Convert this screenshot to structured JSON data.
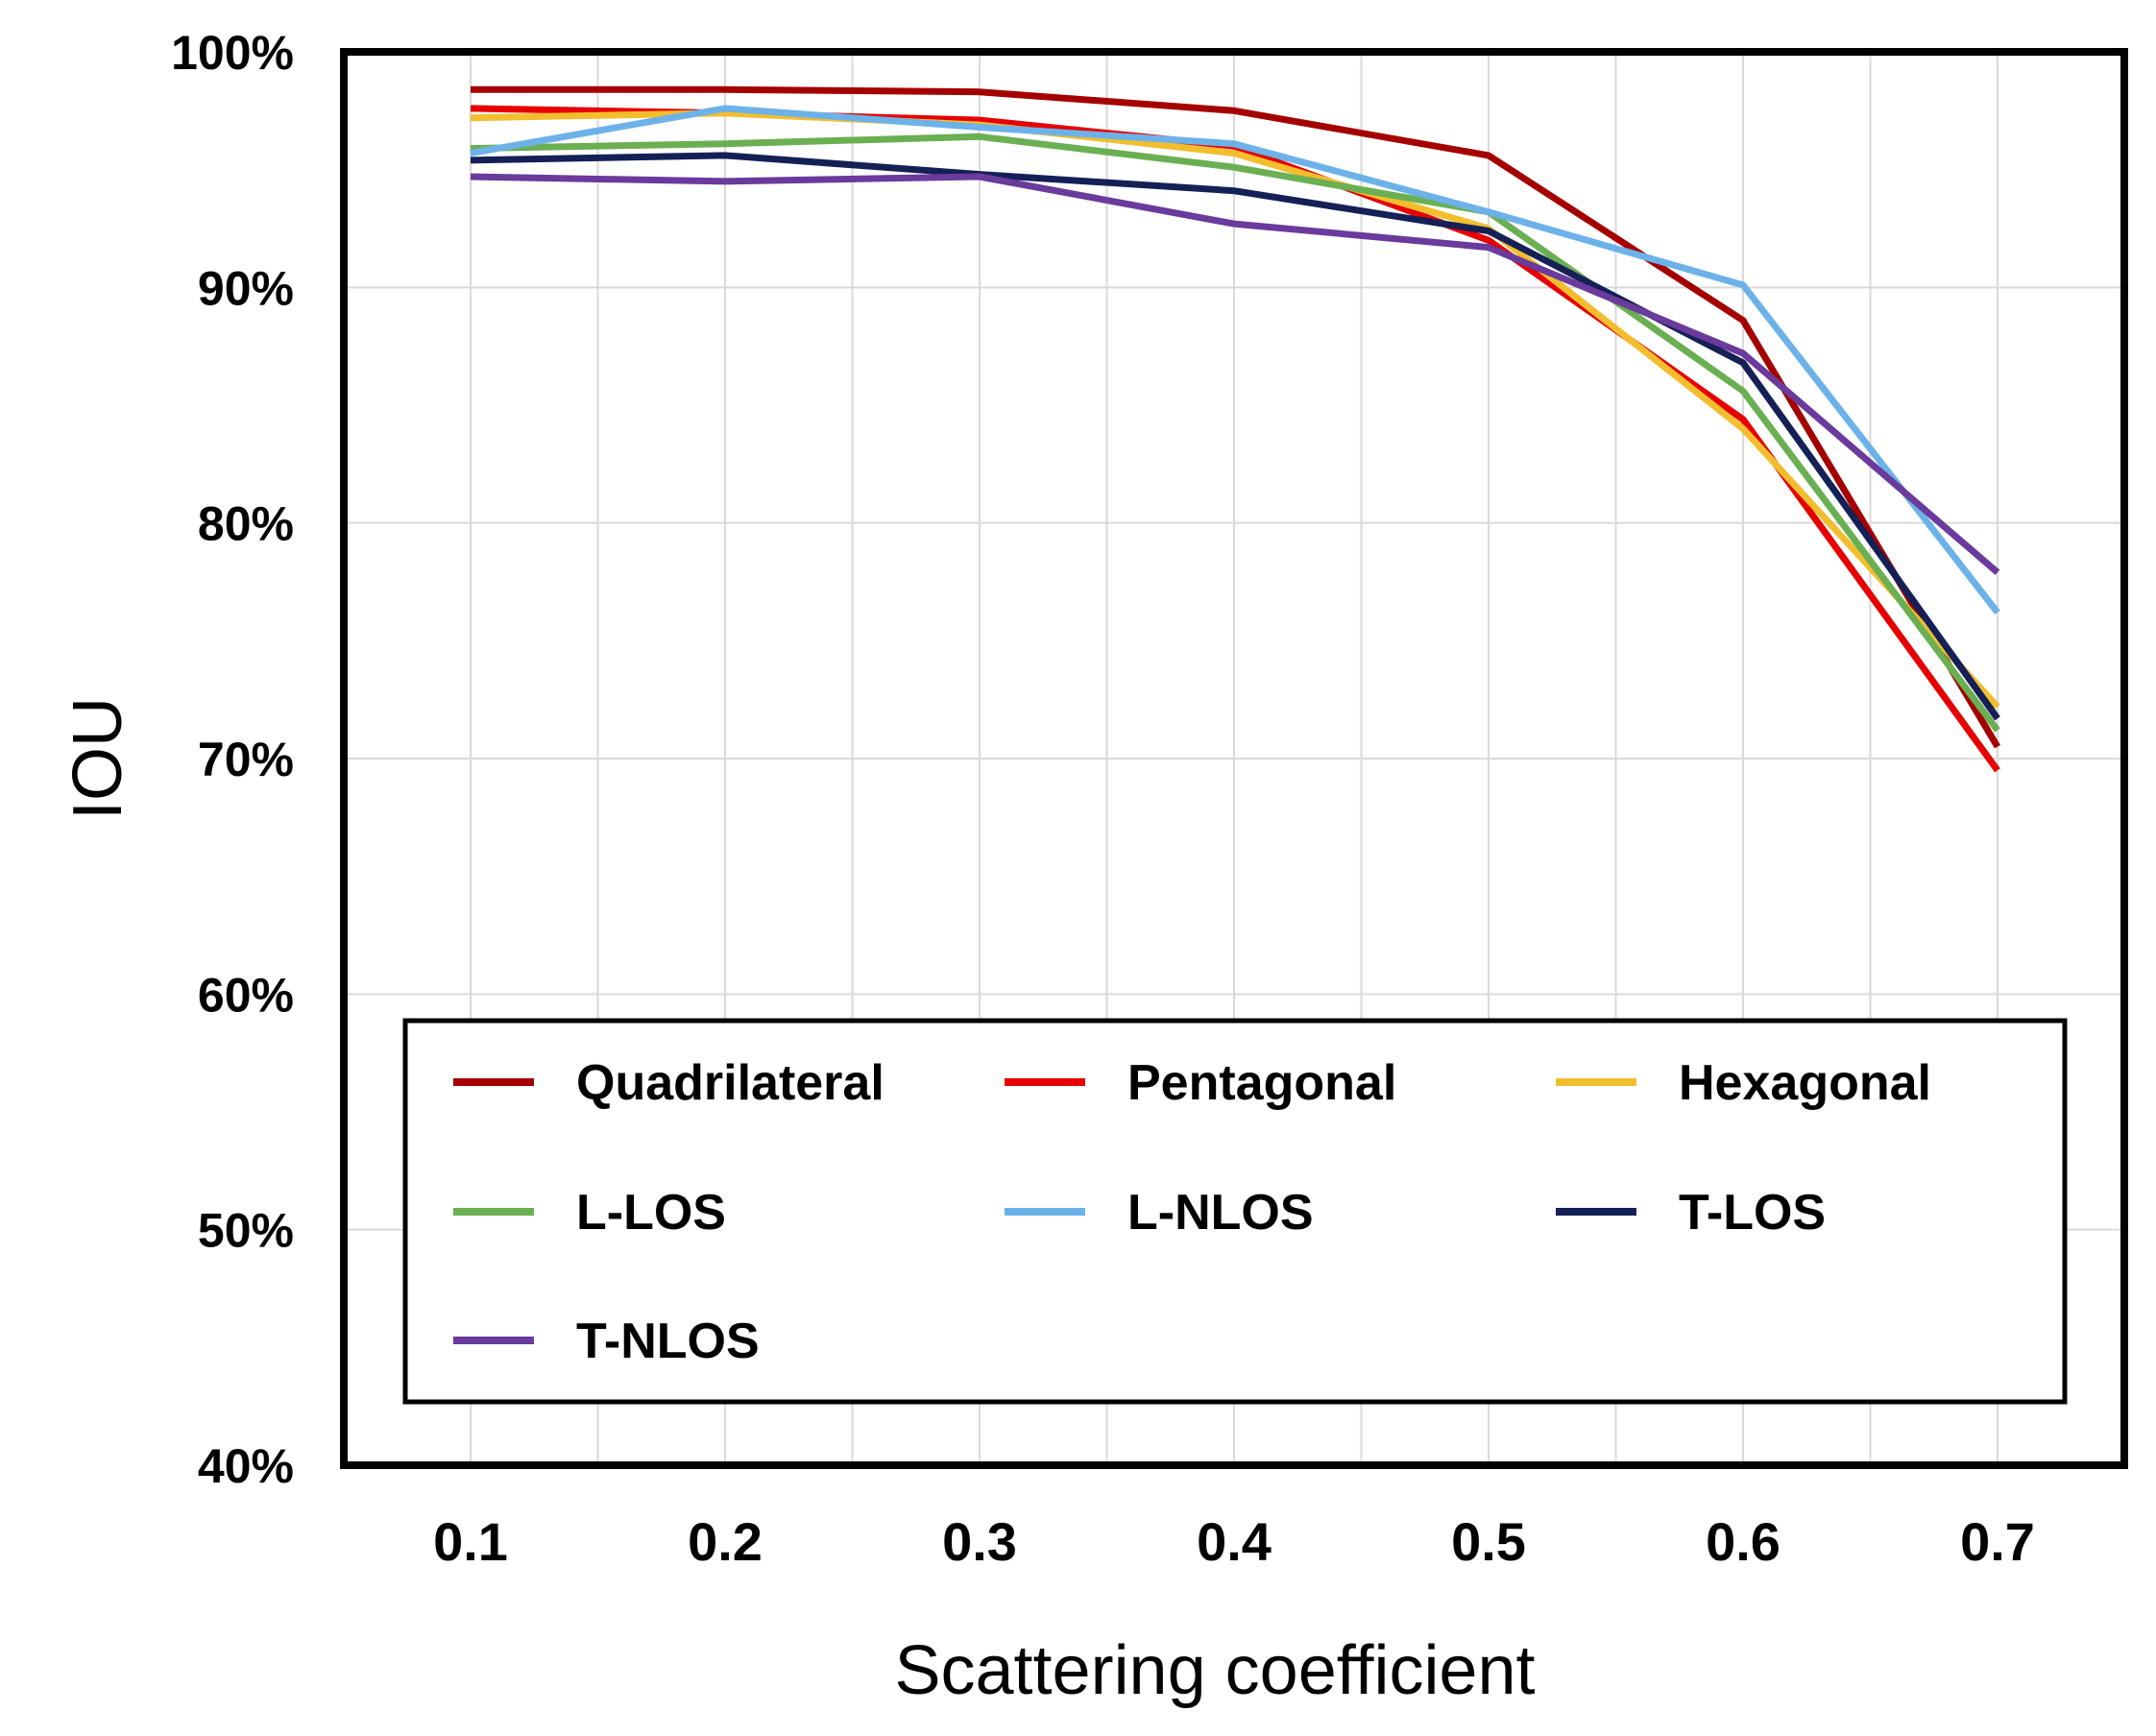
{
  "chart_data": {
    "type": "line",
    "title": "",
    "xlabel": "Scattering coefficient",
    "ylabel": "IOU",
    "x": [
      0.1,
      0.2,
      0.3,
      0.4,
      0.5,
      0.6,
      0.7
    ],
    "x_tick_labels": [
      "0.1",
      "0.2",
      "0.3",
      "0.4",
      "0.5",
      "0.6",
      "0.7"
    ],
    "ylim": [
      40,
      100
    ],
    "y_ticks": [
      40,
      50,
      60,
      70,
      80,
      90,
      100
    ],
    "y_tick_labels": [
      "40%",
      "50%",
      "60%",
      "70%",
      "80%",
      "90%",
      "100%"
    ],
    "grid": true,
    "legend_position": "lower-center",
    "series": [
      {
        "name": "Quadrilateral",
        "color": "#a50000",
        "values": [
          98.4,
          98.4,
          98.3,
          97.5,
          95.6,
          88.6,
          70.5
        ]
      },
      {
        "name": "Pentagonal",
        "color": "#e60000",
        "values": [
          97.6,
          97.4,
          97.1,
          96.0,
          92.0,
          84.4,
          69.5
        ]
      },
      {
        "name": "Hexagonal",
        "color": "#f2be2e",
        "values": [
          97.2,
          97.4,
          96.9,
          95.7,
          92.5,
          84.0,
          72.2
        ]
      },
      {
        "name": "L-LOS",
        "color": "#6aaf52",
        "values": [
          95.9,
          96.1,
          96.4,
          95.1,
          93.2,
          85.6,
          71.2
        ]
      },
      {
        "name": "L-NLOS",
        "color": "#6cb2e9",
        "values": [
          95.7,
          97.6,
          96.8,
          96.1,
          93.2,
          90.1,
          76.2
        ]
      },
      {
        "name": "T-LOS",
        "color": "#142056",
        "values": [
          95.4,
          95.6,
          94.8,
          94.1,
          92.4,
          86.8,
          71.7
        ]
      },
      {
        "name": "T-NLOS",
        "color": "#6a3a9c",
        "values": [
          94.7,
          94.5,
          94.7,
          92.7,
          91.7,
          87.2,
          77.9
        ]
      }
    ]
  }
}
